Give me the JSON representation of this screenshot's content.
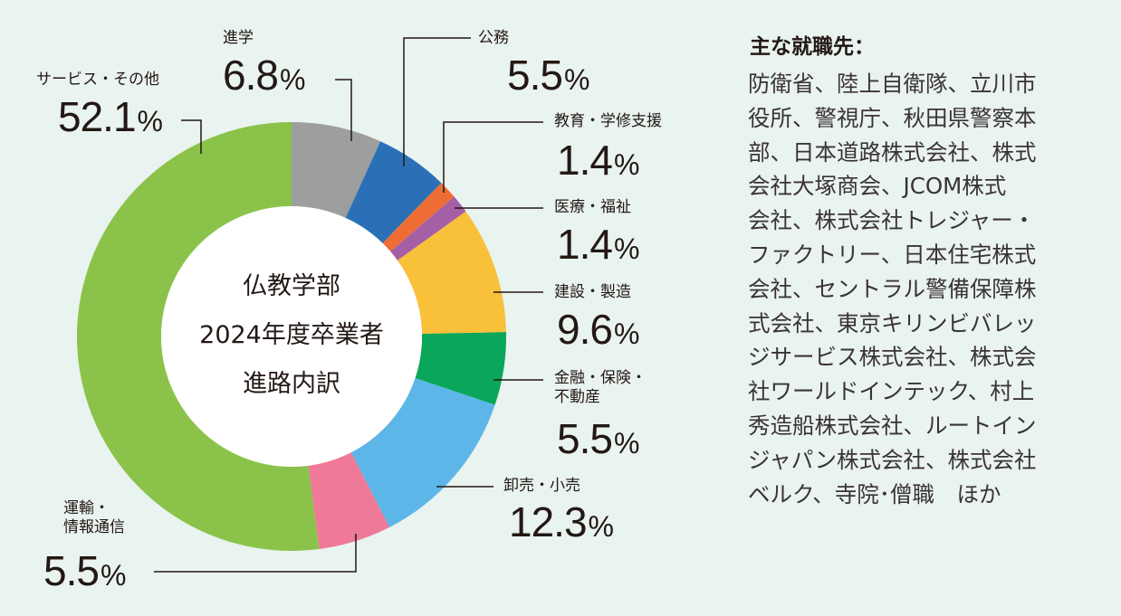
{
  "chart_data": {
    "type": "pie",
    "donut": true,
    "title": "仏教学部 2024年度卒業者 進路内訳",
    "title_lines": [
      "仏教学部",
      "2024年度卒業者",
      "進路内訳"
    ],
    "unit": "%",
    "slices": [
      {
        "label": "進学",
        "value": 6.8,
        "color": "#9d9e9e"
      },
      {
        "label": "公務",
        "value": 5.5,
        "color": "#2b70b7"
      },
      {
        "label": "教育・学修支援",
        "value": 1.4,
        "color": "#ed6d35"
      },
      {
        "label": "医療・福祉",
        "value": 1.4,
        "color": "#a560a5"
      },
      {
        "label": "建設・製造",
        "value": 9.6,
        "color": "#f9c03a"
      },
      {
        "label": "金融・保険・不動産",
        "value": 5.5,
        "color": "#0aa65a"
      },
      {
        "label": "卸売・小売",
        "value": 12.3,
        "color": "#5db6e8"
      },
      {
        "label": "運輸・情報通信",
        "value": 5.5,
        "color": "#ee7a98"
      },
      {
        "label": "サービス・その他",
        "value": 52.1,
        "color": "#8bc34a"
      }
    ],
    "display_labels": {
      "l0": "進学",
      "l1": "公務",
      "l2": "教育・学修支援",
      "l3": "医療・福祉",
      "l4": "建設・製造",
      "l5a": "金融・保険・",
      "l5b": "不動産",
      "l6": "卸売・小売",
      "l7a": "運輸・",
      "l7b": "情報通信",
      "l8": "サービス・その他"
    },
    "display_values": [
      "6.8",
      "5.5",
      "1.4",
      "1.4",
      "9.6",
      "5.5",
      "12.3",
      "5.5",
      "52.1"
    ]
  },
  "sidebar": {
    "title": "主な就職先：",
    "lines": [
      "防衛省、陸上自衛隊、立川市",
      "役所、警視庁、秋田県警察本",
      "部、日本道路株式会社、株式",
      "会社大塚商会、JCOM株式",
      "会社、株式会社トレジャー・",
      "ファクトリー、日本住宅株式",
      "会社、セントラル警備保障株",
      "式会社、東京キリンビバレッ",
      "ジサービス株式会社、株式会",
      "社ワールドインテック、村上",
      "秀造船株式会社、ルートイン",
      "ジャパン株式会社、株式会社",
      "ベルク、寺院･僧職　ほか"
    ]
  }
}
